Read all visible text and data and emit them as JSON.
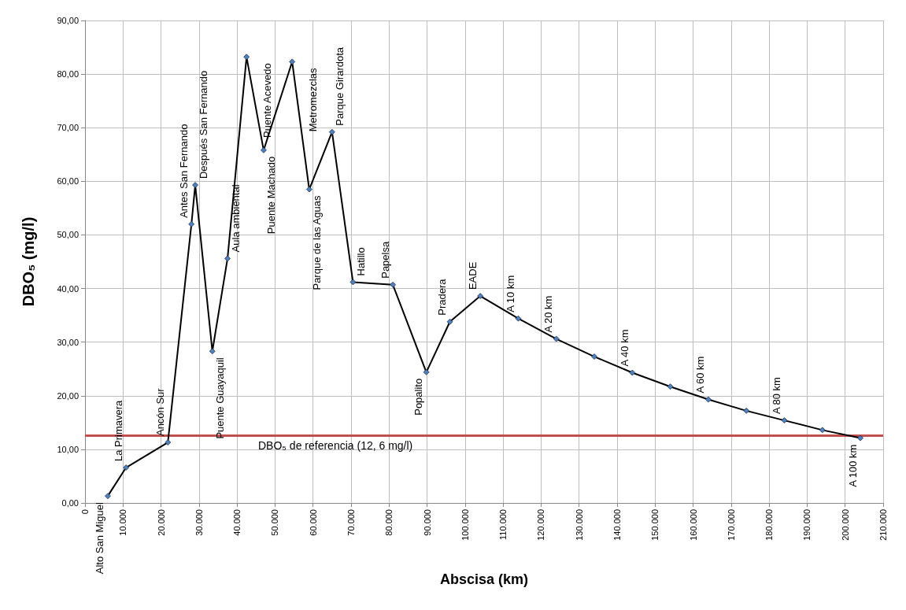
{
  "chart_data": {
    "type": "line",
    "xlabel": "Abscisa (km)",
    "ylabel": "DBO₅ (mg/l)",
    "x": [
      6000,
      10800,
      21800,
      28000,
      29000,
      33500,
      37500,
      42500,
      47000,
      54500,
      59000,
      65000,
      70500,
      81000,
      89800,
      96000,
      104000,
      114000,
      124000,
      134000,
      144000,
      154000,
      164000,
      174000,
      184000,
      194000,
      204000
    ],
    "series": [
      {
        "color": "#4f81bd",
        "values": [
          1.3,
          6.6,
          11.3,
          52.0,
          59.3,
          28.3,
          45.6,
          83.2,
          65.8,
          82.3,
          58.5,
          69.2,
          41.2,
          40.7,
          24.4,
          33.8,
          38.6,
          34.4,
          30.6,
          27.3,
          24.3,
          21.7,
          19.3,
          17.2,
          15.4,
          13.6,
          12.1
        ]
      }
    ],
    "xlim": [
      0,
      210000
    ],
    "xticks": [
      {
        "value": 0,
        "label": "0"
      },
      {
        "value": 10000,
        "label": "10.000"
      },
      {
        "value": 20000,
        "label": "20.000"
      },
      {
        "value": 30000,
        "label": "30.000"
      },
      {
        "value": 40000,
        "label": "40.000"
      },
      {
        "value": 50000,
        "label": "50.000"
      },
      {
        "value": 60000,
        "label": "60.000"
      },
      {
        "value": 70000,
        "label": "70.000"
      },
      {
        "value": 80000,
        "label": "80.000"
      },
      {
        "value": 90000,
        "label": "90.000"
      },
      {
        "value": 100000,
        "label": "100.000"
      },
      {
        "value": 110000,
        "label": "110.000"
      },
      {
        "value": 120000,
        "label": "120.000"
      },
      {
        "value": 130000,
        "label": "130.000"
      },
      {
        "value": 140000,
        "label": "140.000"
      },
      {
        "value": 150000,
        "label": "150.000"
      },
      {
        "value": 160000,
        "label": "160.000"
      },
      {
        "value": 170000,
        "label": "170.000"
      },
      {
        "value": 180000,
        "label": "180.000"
      },
      {
        "value": 190000,
        "label": "190.000"
      },
      {
        "value": 200000,
        "label": "200.000"
      },
      {
        "value": 210000,
        "label": "210.000"
      }
    ],
    "ylim": [
      0,
      90
    ],
    "yticks": [
      {
        "value": 0,
        "label": "0,00"
      },
      {
        "value": 10,
        "label": "10,00"
      },
      {
        "value": 20,
        "label": "20,00"
      },
      {
        "value": 30,
        "label": "30,00"
      },
      {
        "value": 40,
        "label": "40,00"
      },
      {
        "value": 50,
        "label": "50,00"
      },
      {
        "value": 60,
        "label": "60,00"
      },
      {
        "value": 70,
        "label": "70,00"
      },
      {
        "value": 80,
        "label": "80,00"
      },
      {
        "value": 90,
        "label": "90,00"
      }
    ],
    "grid": true,
    "marker": "diamond",
    "line_style": "solid",
    "ref_lines": [
      {
        "axis": "y",
        "value": 12.6,
        "label": "DBO₅ de referencia (12, 6 mg/l)",
        "color": "#c0504d"
      }
    ],
    "annotations": [
      {
        "text": "Alto San Miguel",
        "x": 6000,
        "y": 1.3
      },
      {
        "text": "La Primavera",
        "x": 10800,
        "y": 6.6
      },
      {
        "text": "Ancón Sur",
        "x": 21800,
        "y": 11.3
      },
      {
        "text": "Antes San Fernando",
        "x": 28000,
        "y": 52.0
      },
      {
        "text": "Después San Fernando",
        "x": 29000,
        "y": 59.3
      },
      {
        "text": "Puente Guayaquil",
        "x": 33500,
        "y": 28.3
      },
      {
        "text": "Aula ambiental",
        "x": 37500,
        "y": 45.6
      },
      {
        "text": "Puente Acevedo",
        "x": 42500,
        "y": 83.2
      },
      {
        "text": "Puente Machado",
        "x": 47000,
        "y": 65.8
      },
      {
        "text": "Metromezclas",
        "x": 54500,
        "y": 82.3
      },
      {
        "text": "Parque de las Aguas",
        "x": 59000,
        "y": 58.5
      },
      {
        "text": "Parque Girardota",
        "x": 65000,
        "y": 69.2
      },
      {
        "text": "Hatillo",
        "x": 70500,
        "y": 41.2
      },
      {
        "text": "Papelsa",
        "x": 81000,
        "y": 40.7
      },
      {
        "text": "Popalito",
        "x": 89800,
        "y": 24.4
      },
      {
        "text": "Pradera",
        "x": 96000,
        "y": 33.8
      },
      {
        "text": "EADE",
        "x": 104000,
        "y": 38.6
      },
      {
        "text": "A 10 km",
        "x": 114000,
        "y": 34.4
      },
      {
        "text": "A 20 km",
        "x": 124000,
        "y": 30.6
      },
      {
        "text": "A 40 km",
        "x": 144000,
        "y": 24.3
      },
      {
        "text": "A 60 km",
        "x": 164000,
        "y": 19.3
      },
      {
        "text": "A 80 km",
        "x": 184000,
        "y": 15.4
      },
      {
        "text": "A 100 km",
        "x": 204000,
        "y": 12.1
      }
    ]
  }
}
